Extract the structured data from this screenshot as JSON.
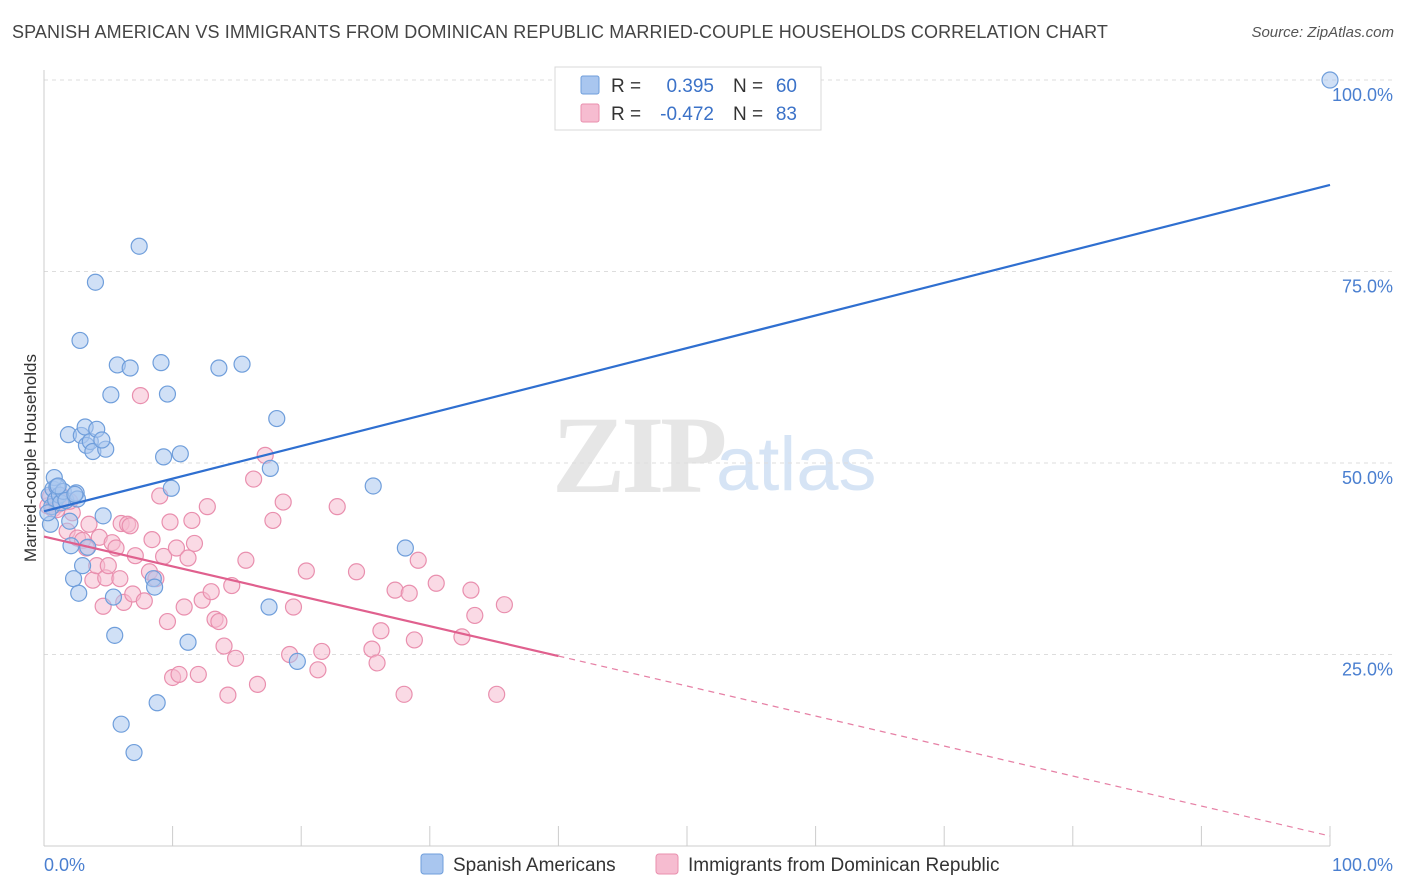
{
  "title": "SPANISH AMERICAN VS IMMIGRANTS FROM DOMINICAN REPUBLIC MARRIED-COUPLE HOUSEHOLDS CORRELATION CHART",
  "source": "Source: ZipAtlas.com",
  "watermark": {
    "zip": "ZIP",
    "atlas": "atlas"
  },
  "colors": {
    "blue_fill": "#a9c6ef",
    "blue_stroke": "#6f9edb",
    "blue_line": "#2f6fd0",
    "pink_fill": "#f6bcd0",
    "pink_stroke": "#e98fae",
    "pink_line": "#e0608e",
    "grid": "#dddddd",
    "tick_label": "#4a7fd0"
  },
  "legend": {
    "rows": [
      {
        "r_label": "R =",
        "r_value": "0.395",
        "n_label": "N =",
        "n_value": "60"
      },
      {
        "r_label": "R =",
        "r_value": "-0.472",
        "n_label": "N =",
        "n_value": "83"
      }
    ]
  },
  "chart_data": {
    "type": "scatter",
    "title": "SPANISH AMERICAN VS IMMIGRANTS FROM DOMINICAN REPUBLIC MARRIED-COUPLE HOUSEHOLDS CORRELATION CHART",
    "xlabel": "",
    "ylabel": "Married-couple Households",
    "xlim": [
      0,
      100
    ],
    "ylim": [
      0,
      102
    ],
    "x_tick_labels": [
      "0.0%",
      "100.0%"
    ],
    "y_ticks": [
      25,
      50,
      75,
      100
    ],
    "y_tick_labels": [
      "25.0%",
      "50.0%",
      "75.0%",
      "100.0%"
    ],
    "grid": true,
    "legend_position": "top-center",
    "series": [
      {
        "name": "Spanish Americans",
        "r": 0.395,
        "n": 60,
        "trend": {
          "x": [
            0,
            100
          ],
          "y": [
            43.7,
            86.3
          ],
          "dashed_from": null
        },
        "points": [
          [
            0.4,
            45.8
          ],
          [
            0.6,
            44.3
          ],
          [
            0.7,
            46.6
          ],
          [
            0.5,
            42.0
          ],
          [
            0.8,
            48.1
          ],
          [
            0.9,
            45.2
          ],
          [
            1.0,
            46.9
          ],
          [
            1.2,
            45.8
          ],
          [
            1.3,
            44.8
          ],
          [
            1.5,
            46.3
          ],
          [
            1.7,
            45.1
          ],
          [
            1.9,
            53.7
          ],
          [
            2.0,
            42.4
          ],
          [
            2.1,
            39.2
          ],
          [
            2.3,
            34.9
          ],
          [
            2.5,
            46.1
          ],
          [
            2.6,
            45.3
          ],
          [
            2.7,
            33.0
          ],
          [
            2.8,
            66.0
          ],
          [
            2.9,
            53.6
          ],
          [
            3.0,
            36.6
          ],
          [
            3.2,
            54.7
          ],
          [
            3.3,
            52.3
          ],
          [
            3.4,
            39.0
          ],
          [
            3.6,
            52.8
          ],
          [
            3.8,
            51.5
          ],
          [
            4.0,
            73.6
          ],
          [
            4.1,
            54.4
          ],
          [
            4.6,
            43.1
          ],
          [
            4.8,
            51.8
          ],
          [
            5.2,
            58.9
          ],
          [
            5.4,
            32.5
          ],
          [
            5.5,
            27.5
          ],
          [
            5.7,
            62.8
          ],
          [
            6.0,
            15.9
          ],
          [
            6.7,
            62.4
          ],
          [
            7.0,
            12.2
          ],
          [
            7.4,
            78.3
          ],
          [
            8.5,
            34.9
          ],
          [
            8.6,
            33.8
          ],
          [
            8.8,
            18.7
          ],
          [
            9.1,
            63.1
          ],
          [
            9.3,
            50.8
          ],
          [
            9.6,
            59.0
          ],
          [
            9.9,
            46.7
          ],
          [
            10.6,
            51.2
          ],
          [
            11.2,
            26.6
          ],
          [
            13.6,
            62.4
          ],
          [
            15.4,
            62.9
          ],
          [
            17.5,
            31.2
          ],
          [
            17.6,
            49.3
          ],
          [
            18.1,
            55.8
          ],
          [
            19.7,
            24.1
          ],
          [
            25.6,
            47.0
          ],
          [
            28.1,
            38.9
          ],
          [
            100.0,
            100.0
          ],
          [
            0.3,
            43.5
          ],
          [
            1.1,
            47.0
          ],
          [
            2.4,
            45.9
          ],
          [
            4.5,
            53.0
          ]
        ]
      },
      {
        "name": "Immigrants from Dominican Republic",
        "r": -0.472,
        "n": 83,
        "trend": {
          "x": [
            0,
            40,
            100
          ],
          "y": [
            40.4,
            24.8,
            1.3
          ],
          "dashed_from": 40
        },
        "points": [
          [
            0.3,
            44.4
          ],
          [
            0.5,
            45.6
          ],
          [
            0.7,
            44.0
          ],
          [
            0.9,
            45.1
          ],
          [
            1.1,
            44.6
          ],
          [
            1.3,
            45.8
          ],
          [
            1.6,
            44.9
          ],
          [
            1.8,
            41.1
          ],
          [
            2.2,
            43.5
          ],
          [
            2.6,
            40.2
          ],
          [
            3.0,
            39.9
          ],
          [
            3.3,
            38.9
          ],
          [
            3.5,
            42.0
          ],
          [
            3.8,
            34.7
          ],
          [
            4.1,
            36.6
          ],
          [
            4.3,
            40.3
          ],
          [
            4.6,
            31.3
          ],
          [
            4.8,
            35.0
          ],
          [
            5.0,
            36.6
          ],
          [
            5.3,
            39.6
          ],
          [
            5.6,
            38.9
          ],
          [
            5.9,
            34.9
          ],
          [
            6.0,
            42.1
          ],
          [
            6.2,
            31.8
          ],
          [
            6.5,
            42.0
          ],
          [
            6.9,
            32.9
          ],
          [
            7.1,
            37.9
          ],
          [
            7.5,
            58.8
          ],
          [
            7.8,
            32.0
          ],
          [
            8.2,
            35.8
          ],
          [
            8.4,
            40.0
          ],
          [
            8.7,
            34.9
          ],
          [
            9.0,
            45.7
          ],
          [
            9.3,
            37.8
          ],
          [
            9.6,
            29.3
          ],
          [
            9.8,
            42.3
          ],
          [
            10.0,
            22.0
          ],
          [
            10.3,
            38.9
          ],
          [
            10.5,
            22.4
          ],
          [
            10.9,
            31.2
          ],
          [
            11.2,
            37.6
          ],
          [
            11.5,
            42.5
          ],
          [
            11.7,
            39.5
          ],
          [
            12.0,
            22.4
          ],
          [
            12.3,
            32.1
          ],
          [
            12.7,
            44.3
          ],
          [
            13.0,
            33.2
          ],
          [
            13.3,
            29.6
          ],
          [
            13.6,
            29.3
          ],
          [
            14.0,
            26.1
          ],
          [
            14.3,
            19.7
          ],
          [
            14.6,
            34.0
          ],
          [
            14.9,
            24.5
          ],
          [
            15.7,
            37.3
          ],
          [
            16.3,
            47.9
          ],
          [
            16.6,
            21.1
          ],
          [
            17.2,
            51.0
          ],
          [
            17.8,
            42.5
          ],
          [
            18.6,
            44.9
          ],
          [
            19.1,
            25.0
          ],
          [
            19.4,
            31.2
          ],
          [
            20.4,
            35.9
          ],
          [
            21.3,
            23.0
          ],
          [
            21.6,
            25.4
          ],
          [
            22.8,
            44.3
          ],
          [
            24.3,
            35.8
          ],
          [
            25.5,
            25.7
          ],
          [
            25.9,
            23.9
          ],
          [
            26.2,
            28.1
          ],
          [
            27.3,
            33.4
          ],
          [
            28.0,
            19.8
          ],
          [
            28.4,
            33.0
          ],
          [
            28.8,
            26.9
          ],
          [
            29.1,
            37.3
          ],
          [
            30.5,
            34.3
          ],
          [
            32.5,
            27.3
          ],
          [
            33.2,
            33.4
          ],
          [
            33.5,
            30.1
          ],
          [
            35.2,
            19.8
          ],
          [
            35.8,
            31.5
          ],
          [
            1.0,
            43.9
          ],
          [
            2.0,
            45.0
          ],
          [
            6.7,
            41.8
          ]
        ]
      }
    ]
  }
}
